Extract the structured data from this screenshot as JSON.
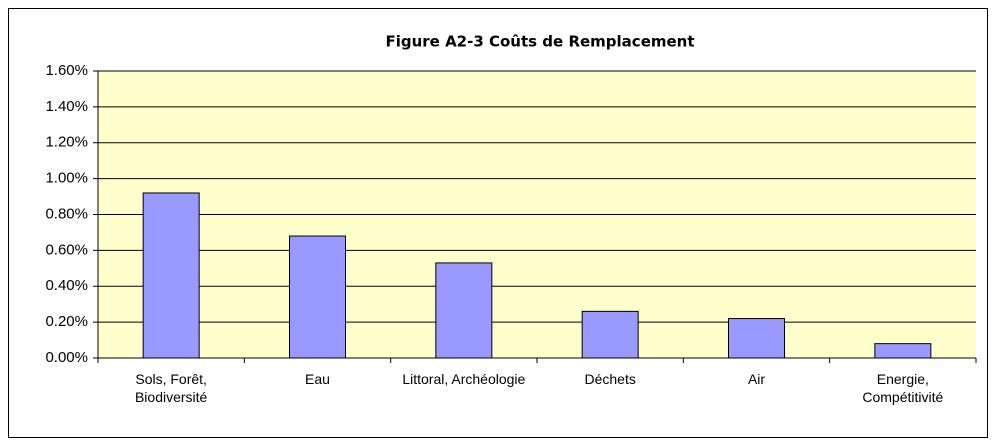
{
  "chart_data": {
    "type": "bar",
    "title": "Figure A2-3  Coûts de Remplacement",
    "categories": [
      "Sols, Forêt, Biodiversité",
      "Eau",
      "Littoral, Archéologie",
      "Déchets",
      "Air",
      "Energie, Compétitivité"
    ],
    "values": [
      0.92,
      0.68,
      0.53,
      0.26,
      0.22,
      0.08
    ],
    "color": "#9999ff",
    "ylim": [
      0,
      1.6
    ],
    "yticks": [
      {
        "value": 0,
        "label": "0.00%"
      },
      {
        "value": 0.2,
        "label": "0.20%"
      },
      {
        "value": 0.4,
        "label": "0.40%"
      },
      {
        "value": 0.6,
        "label": "0.60%"
      },
      {
        "value": 0.8,
        "label": "0.80%"
      },
      {
        "value": 1.0,
        "label": "1.00%"
      },
      {
        "value": 1.2,
        "label": "1.20%"
      },
      {
        "value": 1.4,
        "label": "1.40%"
      },
      {
        "value": 1.6,
        "label": "1.60%"
      }
    ],
    "grid": true
  }
}
